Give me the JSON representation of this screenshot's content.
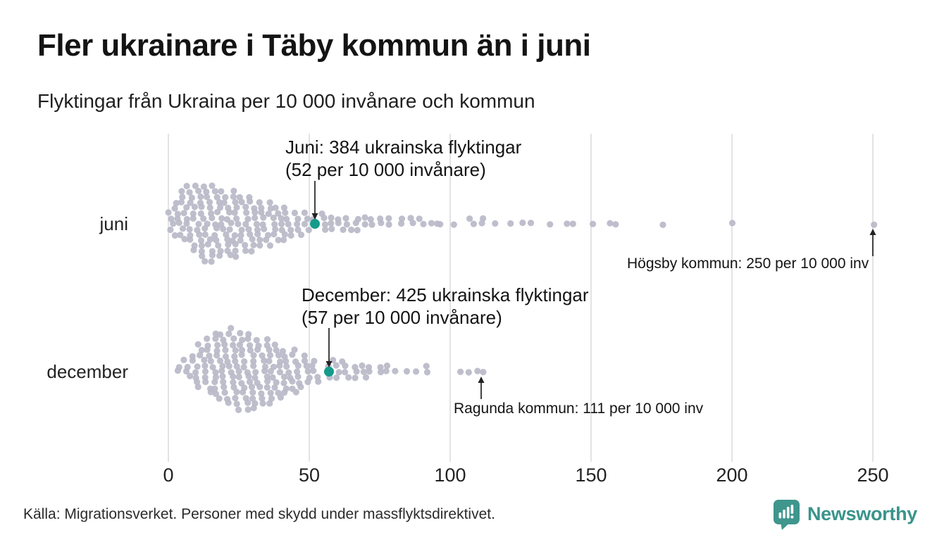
{
  "header": {
    "title": "Fler ukrainare i Täby kommun än i juni",
    "subtitle": "Flyktingar från Ukraina per 10 000 invånare och kommun"
  },
  "chart_data": {
    "type": "beeswarm",
    "title": "Fler ukrainare i Täby kommun än i juni",
    "subtitle": "Flyktingar från Ukraina per 10 000 invånare och kommun",
    "xlim": [
      0,
      250
    ],
    "x_ticks": [
      0,
      50,
      100,
      150,
      200,
      250
    ],
    "grid": "vertical",
    "rows": [
      {
        "label": "juni",
        "highlight": {
          "refugees": 384,
          "per_10000": 52,
          "annotation_line1": "Juni: 384 ukrainska flyktingar",
          "annotation_line2": "(52 per 10 000 invånare)"
        },
        "outlier": {
          "label": "Högsby kommun: 250 per 10 000 inv",
          "per_10000": 250
        },
        "bins": [
          [
            1,
            5
          ],
          [
            4,
            8
          ],
          [
            7,
            12
          ],
          [
            10,
            15
          ],
          [
            13,
            15
          ],
          [
            16,
            14
          ],
          [
            19,
            14
          ],
          [
            22,
            13
          ],
          [
            25,
            12
          ],
          [
            28,
            11
          ],
          [
            31,
            10
          ],
          [
            34,
            9
          ],
          [
            37,
            8
          ],
          [
            40,
            7
          ],
          [
            43,
            6
          ],
          [
            46,
            5
          ],
          [
            49,
            4
          ],
          [
            52,
            2
          ],
          [
            55,
            4
          ],
          [
            58,
            3
          ],
          [
            61,
            3
          ],
          [
            64,
            3
          ],
          [
            67,
            3
          ],
          [
            70,
            2
          ],
          [
            73,
            2
          ],
          [
            76,
            2
          ],
          [
            79,
            2
          ],
          [
            83,
            2
          ],
          [
            87,
            2
          ],
          [
            90,
            2
          ],
          [
            93,
            1
          ],
          [
            95,
            1
          ],
          [
            97,
            1
          ],
          [
            102,
            1
          ],
          [
            108,
            2
          ],
          [
            112,
            2
          ],
          [
            116,
            1
          ],
          [
            121,
            1
          ],
          [
            126,
            1
          ],
          [
            129,
            1
          ],
          [
            136,
            1
          ],
          [
            141,
            1
          ],
          [
            143,
            1
          ],
          [
            150,
            1
          ],
          [
            156,
            1
          ],
          [
            159,
            1
          ],
          [
            176,
            1
          ],
          [
            200,
            1
          ],
          [
            250,
            1
          ]
        ]
      },
      {
        "label": "december",
        "highlight": {
          "refugees": 425,
          "per_10000": 57,
          "annotation_line1": "December: 425 ukrainska flyktingar",
          "annotation_line2": "(57 per 10 000 invånare)"
        },
        "outlier": {
          "label": "Ragunda kommun: 111 per 10 000 inv",
          "per_10000": 111
        },
        "bins": [
          [
            4,
            2
          ],
          [
            7,
            4
          ],
          [
            10,
            7
          ],
          [
            13,
            10
          ],
          [
            16,
            12
          ],
          [
            19,
            14
          ],
          [
            22,
            15
          ],
          [
            25,
            16
          ],
          [
            28,
            15
          ],
          [
            31,
            14
          ],
          [
            34,
            13
          ],
          [
            37,
            12
          ],
          [
            40,
            10
          ],
          [
            43,
            9
          ],
          [
            46,
            8
          ],
          [
            49,
            6
          ],
          [
            52,
            5
          ],
          [
            57,
            3
          ],
          [
            60,
            4
          ],
          [
            63,
            4
          ],
          [
            66,
            3
          ],
          [
            69,
            3
          ],
          [
            72,
            2
          ],
          [
            75,
            2
          ],
          [
            78,
            2
          ],
          [
            81,
            1
          ],
          [
            85,
            1
          ],
          [
            88,
            1
          ],
          [
            92,
            2
          ],
          [
            103,
            1
          ],
          [
            107,
            1
          ],
          [
            110,
            1
          ],
          [
            111,
            1
          ]
        ]
      }
    ],
    "colors": {
      "dot": "#b9b8c8",
      "highlight": "#159b8b",
      "gridline": "#dcdcdf",
      "arrow": "#222222"
    }
  },
  "footer": {
    "source": "Källa: Migrationsverket. Personer med skydd under massflyktsdirektivet.",
    "brand": "Newsworthy",
    "brand_color": "#3a948b"
  }
}
